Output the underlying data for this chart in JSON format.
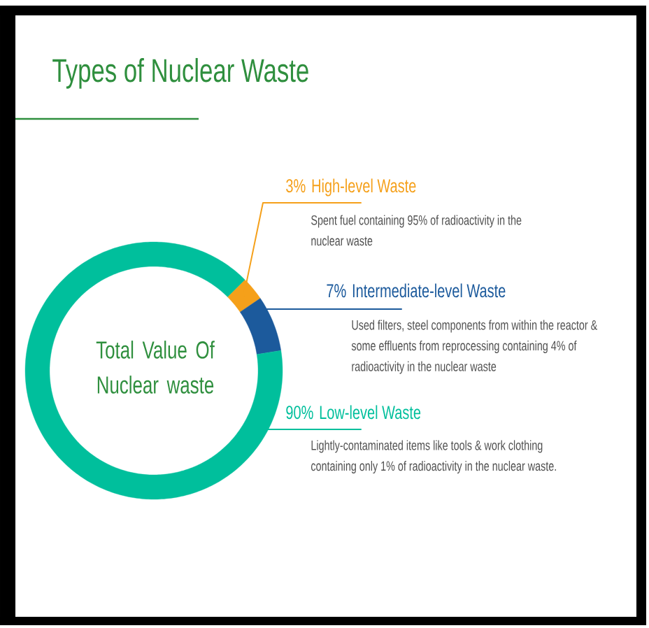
{
  "chart_data": {
    "type": "donut",
    "title": "Types of Nuclear Waste",
    "categories": [
      "High-level Waste",
      "Intermediate-level Waste",
      "Low-level Waste"
    ],
    "values": [
      3,
      7,
      90
    ],
    "value_labels": [
      "3%",
      "7%",
      "90%"
    ],
    "colors": [
      "#f5a01a",
      "#1c5a9c",
      "#00bf9c"
    ],
    "annotations": [
      "Total Value Of Nuclear waste",
      "Spent fuel containing 95% of radioactivity in the nuclear waste",
      "Used filters, steel components from within the reactor & some effluents from reprocessing containing 4% of radioactivity in the nuclear waste",
      "Lightly-contaminated items like tools & work clothing containing only 1% of radioactivity in the nuclear waste."
    ]
  }
}
